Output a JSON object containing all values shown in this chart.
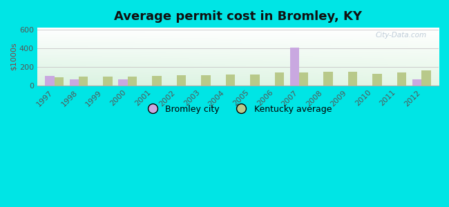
{
  "title": "Average permit cost in Bromley, KY",
  "ylabel": "$1000s",
  "years": [
    1997,
    1998,
    1999,
    2000,
    2001,
    2002,
    2003,
    2004,
    2005,
    2006,
    2007,
    2008,
    2009,
    2010,
    2011,
    2012
  ],
  "bromley": [
    105,
    65,
    0,
    65,
    0,
    0,
    0,
    0,
    0,
    0,
    410,
    0,
    0,
    0,
    0,
    65
  ],
  "kentucky": [
    88,
    93,
    93,
    95,
    103,
    108,
    112,
    120,
    122,
    138,
    138,
    148,
    148,
    128,
    140,
    160
  ],
  "bromley_color": "#c9a8e0",
  "kentucky_color": "#b8c98a",
  "bg_outer": "#00e5e5",
  "ylim": [
    0,
    620
  ],
  "yticks": [
    0,
    200,
    400,
    600
  ],
  "bar_width": 0.38,
  "legend_bromley": "Bromley city",
  "legend_kentucky": "Kentucky average",
  "watermark": "City-Data.com",
  "tick_color": "#555555",
  "ylabel_color": "#8b4040",
  "title_color": "#111111",
  "title_fontsize": 13,
  "axis_fontsize": 8,
  "legend_fontsize": 9
}
